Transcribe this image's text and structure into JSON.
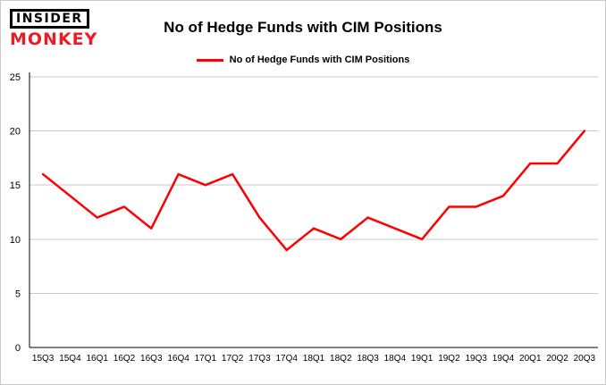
{
  "logo": {
    "line1": "INSIDER",
    "line2": "MONKEY"
  },
  "header": {
    "title": "No of Hedge Funds with CIM Positions"
  },
  "legend": {
    "label": "No of Hedge Funds with CIM Positions"
  },
  "colors": {
    "line": "#fe0000",
    "gridline": "#c8c8c8",
    "axis": "#000000",
    "text": "#000000",
    "logo_red": "#ed1c24"
  },
  "chart_data": {
    "type": "line",
    "title": "No of Hedge Funds with CIM Positions",
    "series_name": "No of Hedge Funds with CIM Positions",
    "categories": [
      "15Q3",
      "15Q4",
      "16Q1",
      "16Q2",
      "16Q3",
      "16Q4",
      "17Q1",
      "17Q2",
      "17Q3",
      "17Q4",
      "18Q1",
      "18Q2",
      "18Q3",
      "18Q4",
      "19Q1",
      "19Q2",
      "19Q3",
      "19Q4",
      "20Q1",
      "20Q2",
      "20Q3"
    ],
    "values": [
      16,
      14,
      12,
      13,
      11,
      16,
      15,
      16,
      12,
      9,
      11,
      10,
      12,
      11,
      10,
      13,
      13,
      14,
      17,
      17,
      20
    ],
    "xlabel": "",
    "ylabel": "",
    "ylim": [
      0,
      25
    ],
    "yticks": [
      0,
      5,
      10,
      15,
      20,
      25
    ],
    "grid": true,
    "legend_position": "top"
  }
}
